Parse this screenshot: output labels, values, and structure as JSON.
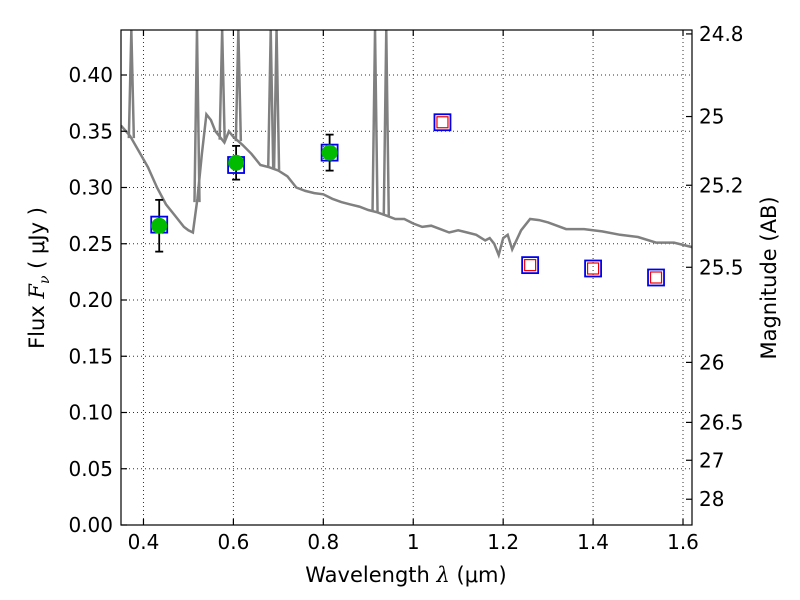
{
  "chart_data": {
    "type": "scatter",
    "xlabel": {
      "prefix": "Wavelength  ",
      "symbol": "λ",
      "unit": " (μm)"
    },
    "ylabel": {
      "prefix": "Flux  ",
      "symbol": "F",
      "subscript": "ν",
      "unit": "  ( μJy )"
    },
    "y2label": "Magnitude (AB)",
    "xlim": [
      0.35,
      1.62
    ],
    "ylim": [
      0.0,
      0.44
    ],
    "grid": true,
    "x_ticks": [
      {
        "value": 0.4,
        "label": "0.4"
      },
      {
        "value": 0.6,
        "label": "0.6"
      },
      {
        "value": 0.8,
        "label": "0.8"
      },
      {
        "value": 1.0,
        "label": "1"
      },
      {
        "value": 1.2,
        "label": "1.2"
      },
      {
        "value": 1.4,
        "label": "1.4"
      },
      {
        "value": 1.6,
        "label": "1.6"
      }
    ],
    "y_ticks": [
      {
        "value": 0.0,
        "label": "0.00"
      },
      {
        "value": 0.05,
        "label": "0.05"
      },
      {
        "value": 0.1,
        "label": "0.10"
      },
      {
        "value": 0.15,
        "label": "0.15"
      },
      {
        "value": 0.2,
        "label": "0.20"
      },
      {
        "value": 0.25,
        "label": "0.25"
      },
      {
        "value": 0.3,
        "label": "0.30"
      },
      {
        "value": 0.35,
        "label": "0.35"
      },
      {
        "value": 0.4,
        "label": "0.40"
      }
    ],
    "y2_ticks": [
      {
        "value": 24.8,
        "label": "24.8"
      },
      {
        "value": 25,
        "label": "25"
      },
      {
        "value": 25.2,
        "label": "25.2"
      },
      {
        "value": 25.5,
        "label": "25.5"
      },
      {
        "value": 26,
        "label": "26"
      },
      {
        "value": 26.5,
        "label": "26.5"
      },
      {
        "value": 27,
        "label": "27"
      },
      {
        "value": 28,
        "label": "28"
      }
    ],
    "colors": {
      "model": "#808080",
      "observed_fill": "#00bb00",
      "model_box": "#0000ee",
      "upper_limit_box": "#ee0000",
      "errorbar": "#000000"
    },
    "series": [
      {
        "kind": "model_sed_line",
        "x": [
          0.35,
          0.37,
          0.39,
          0.41,
          0.43,
          0.45,
          0.47,
          0.49,
          0.5,
          0.51,
          0.52,
          0.53,
          0.54,
          0.55,
          0.56,
          0.57,
          0.58,
          0.59,
          0.6,
          0.62,
          0.64,
          0.66,
          0.68,
          0.7,
          0.72,
          0.74,
          0.76,
          0.78,
          0.8,
          0.82,
          0.84,
          0.86,
          0.88,
          0.9,
          0.92,
          0.94,
          0.96,
          0.98,
          1.0,
          1.02,
          1.04,
          1.06,
          1.08,
          1.1,
          1.12,
          1.14,
          1.16,
          1.17,
          1.18,
          1.19,
          1.2,
          1.21,
          1.22,
          1.24,
          1.26,
          1.28,
          1.3,
          1.34,
          1.38,
          1.42,
          1.46,
          1.5,
          1.54,
          1.58,
          1.62
        ],
        "y": [
          0.355,
          0.346,
          0.332,
          0.318,
          0.3,
          0.285,
          0.275,
          0.265,
          0.262,
          0.26,
          0.29,
          0.33,
          0.365,
          0.36,
          0.35,
          0.345,
          0.34,
          0.35,
          0.345,
          0.338,
          0.33,
          0.32,
          0.318,
          0.315,
          0.31,
          0.3,
          0.297,
          0.295,
          0.294,
          0.29,
          0.287,
          0.285,
          0.283,
          0.28,
          0.278,
          0.275,
          0.272,
          0.272,
          0.268,
          0.265,
          0.266,
          0.263,
          0.26,
          0.262,
          0.26,
          0.258,
          0.253,
          0.255,
          0.25,
          0.24,
          0.255,
          0.258,
          0.245,
          0.262,
          0.272,
          0.271,
          0.269,
          0.263,
          0.263,
          0.261,
          0.258,
          0.256,
          0.251,
          0.251,
          0.247
        ]
      },
      {
        "kind": "model_sed_emission_lines",
        "lines": [
          {
            "x": 0.373,
            "peak": 0.44
          },
          {
            "x": 0.519,
            "peak": 0.44
          },
          {
            "x": 0.575,
            "peak": 0.44
          },
          {
            "x": 0.611,
            "peak": 0.44
          },
          {
            "x": 0.683,
            "peak": 0.44
          },
          {
            "x": 0.696,
            "peak": 0.44
          },
          {
            "x": 0.915,
            "peak": 0.44
          },
          {
            "x": 0.94,
            "peak": 0.44
          }
        ]
      },
      {
        "kind": "observed_photometry",
        "x": [
          0.435,
          0.606,
          0.814
        ],
        "y": [
          0.266,
          0.322,
          0.331
        ],
        "yerr": [
          0.023,
          0.015,
          0.016
        ]
      },
      {
        "kind": "model_photometry",
        "x": [
          0.435,
          0.606,
          0.814,
          1.065,
          1.26,
          1.4,
          1.54
        ],
        "y": [
          0.267,
          0.32,
          0.331,
          0.358,
          0.231,
          0.228,
          0.22
        ]
      },
      {
        "kind": "upper_limits",
        "x": [
          1.065,
          1.26,
          1.4,
          1.54
        ],
        "y": [
          0.358,
          0.231,
          0.228,
          0.22
        ]
      }
    ]
  }
}
